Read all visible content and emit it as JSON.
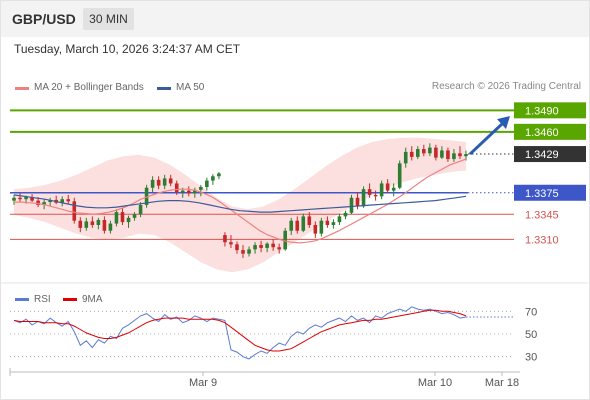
{
  "header": {
    "symbol": "GBP/USD",
    "timeframe": "30 MIN"
  },
  "timestamp": "Tuesday, March 10, 2026 3:24:37 AM CET",
  "legend": {
    "ma20": "MA 20 + Bollinger Bands",
    "ma50": "MA 50"
  },
  "copyright": "Research © 2026 Trading Central",
  "colors": {
    "up": "#2e7d32",
    "down": "#c62828",
    "ma20": "#f08080",
    "ma50": "#3b5b9a",
    "bands": "#fbd6d6",
    "target": "#5aa600",
    "support": "#3d56c8",
    "resistance": "#d9534f",
    "last": "#333333",
    "arrow": "#2a5cb0",
    "rsi": "#5b7bd5",
    "rsi_ma": "#e00000"
  },
  "chart_data": [
    {
      "type": "candlestick",
      "ylim": [
        1.327,
        1.351
      ],
      "levels": [
        {
          "kind": "target",
          "label": "1.3490",
          "value": 1.349
        },
        {
          "kind": "target",
          "label": "1.3460",
          "value": 1.346
        },
        {
          "kind": "last",
          "label": "1.3429",
          "value": 1.3429
        },
        {
          "kind": "pivot",
          "label": "1.3375",
          "value": 1.3375
        },
        {
          "kind": "resistance",
          "label": "1.3345",
          "value": 1.3345
        },
        {
          "kind": "resistance",
          "label": "1.3310",
          "value": 1.331
        }
      ],
      "x_labels": [
        "Mar 9",
        "Mar 10",
        "Mar 18"
      ],
      "candles": [
        [
          1.3364,
          1.3372,
          1.3358,
          1.3368
        ],
        [
          1.3368,
          1.3374,
          1.3362,
          1.3366
        ],
        [
          1.3366,
          1.3371,
          1.336,
          1.3369
        ],
        [
          1.3369,
          1.3373,
          1.3362,
          1.3364
        ],
        [
          1.3364,
          1.3369,
          1.3355,
          1.3358
        ],
        [
          1.3358,
          1.3366,
          1.3352,
          1.3362
        ],
        [
          1.3362,
          1.3368,
          1.3356,
          1.3365
        ],
        [
          1.3365,
          1.3371,
          1.3359,
          1.3361
        ],
        [
          1.3361,
          1.337,
          1.3356,
          1.3366
        ],
        [
          1.3366,
          1.3372,
          1.336,
          1.3363
        ],
        [
          1.3363,
          1.3368,
          1.3332,
          1.3336
        ],
        [
          1.3336,
          1.3341,
          1.332,
          1.3326
        ],
        [
          1.3326,
          1.334,
          1.3322,
          1.3335
        ],
        [
          1.3335,
          1.3342,
          1.3326,
          1.333
        ],
        [
          1.333,
          1.334,
          1.3324,
          1.3337
        ],
        [
          1.3337,
          1.3342,
          1.3318,
          1.3322
        ],
        [
          1.3322,
          1.3336,
          1.3318,
          1.3332
        ],
        [
          1.3332,
          1.3352,
          1.3328,
          1.3348
        ],
        [
          1.3348,
          1.3354,
          1.333,
          1.3334
        ],
        [
          1.3334,
          1.3343,
          1.3326,
          1.334
        ],
        [
          1.334,
          1.3348,
          1.3336,
          1.3345
        ],
        [
          1.3345,
          1.3362,
          1.3341,
          1.3358
        ],
        [
          1.3358,
          1.3386,
          1.3354,
          1.3382
        ],
        [
          1.3382,
          1.3398,
          1.3376,
          1.3393
        ],
        [
          1.3393,
          1.3398,
          1.338,
          1.3385
        ],
        [
          1.3385,
          1.34,
          1.338,
          1.3395
        ],
        [
          1.3395,
          1.34,
          1.3384,
          1.3388
        ],
        [
          1.3388,
          1.3392,
          1.3372,
          1.3376
        ],
        [
          1.3376,
          1.3382,
          1.3368,
          1.3378
        ],
        [
          1.3378,
          1.3384,
          1.337,
          1.3374
        ],
        [
          1.3374,
          1.3382,
          1.3368,
          1.3379
        ],
        [
          1.3379,
          1.3386,
          1.337,
          1.3383
        ],
        [
          1.3383,
          1.3396,
          1.3378,
          1.3392
        ],
        [
          1.3392,
          1.3401,
          1.3386,
          1.3398
        ],
        [
          1.3398,
          1.3404,
          1.3394,
          1.3402
        ],
        [
          1.3316,
          1.332,
          1.33,
          1.3306
        ],
        [
          1.3306,
          1.3316,
          1.3298,
          1.3303
        ],
        [
          1.3303,
          1.3307,
          1.329,
          1.3295
        ],
        [
          1.3295,
          1.3302,
          1.3284,
          1.329
        ],
        [
          1.329,
          1.33,
          1.3286,
          1.3296
        ],
        [
          1.3296,
          1.3306,
          1.329,
          1.3302
        ],
        [
          1.3302,
          1.3308,
          1.3292,
          1.3298
        ],
        [
          1.3298,
          1.3306,
          1.3292,
          1.3304
        ],
        [
          1.3304,
          1.331,
          1.3294,
          1.3299
        ],
        [
          1.3299,
          1.3304,
          1.329,
          1.3296
        ],
        [
          1.3296,
          1.3326,
          1.3294,
          1.3322
        ],
        [
          1.3322,
          1.334,
          1.3316,
          1.3336
        ],
        [
          1.3336,
          1.3342,
          1.3318,
          1.3322
        ],
        [
          1.3322,
          1.3346,
          1.332,
          1.3342
        ],
        [
          1.3342,
          1.3348,
          1.3326,
          1.333
        ],
        [
          1.333,
          1.3335,
          1.3312,
          1.3318
        ],
        [
          1.3318,
          1.334,
          1.3314,
          1.3336
        ],
        [
          1.3336,
          1.3342,
          1.3326,
          1.333
        ],
        [
          1.333,
          1.3338,
          1.3325,
          1.3334
        ],
        [
          1.3334,
          1.3346,
          1.333,
          1.3342
        ],
        [
          1.3342,
          1.335,
          1.3338,
          1.3347
        ],
        [
          1.3347,
          1.3372,
          1.3345,
          1.3368
        ],
        [
          1.3368,
          1.3376,
          1.3352,
          1.3356
        ],
        [
          1.3356,
          1.3384,
          1.3354,
          1.338
        ],
        [
          1.338,
          1.3388,
          1.3368,
          1.3372
        ],
        [
          1.3372,
          1.3378,
          1.3364,
          1.337
        ],
        [
          1.337,
          1.3392,
          1.3366,
          1.3388
        ],
        [
          1.3388,
          1.3394,
          1.3374,
          1.3378
        ],
        [
          1.3378,
          1.3388,
          1.337,
          1.3382
        ],
        [
          1.3382,
          1.342,
          1.338,
          1.3416
        ],
        [
          1.3416,
          1.3438,
          1.341,
          1.3432
        ],
        [
          1.3432,
          1.344,
          1.342,
          1.3425
        ],
        [
          1.3425,
          1.344,
          1.3422,
          1.3436
        ],
        [
          1.3436,
          1.3442,
          1.3426,
          1.343
        ],
        [
          1.343,
          1.3444,
          1.3426,
          1.3438
        ],
        [
          1.3438,
          1.3442,
          1.342,
          1.3424
        ],
        [
          1.3424,
          1.344,
          1.3422,
          1.3434
        ],
        [
          1.3434,
          1.3438,
          1.3418,
          1.3422
        ],
        [
          1.3422,
          1.3436,
          1.3418,
          1.343
        ],
        [
          1.343,
          1.344,
          1.3422,
          1.3426
        ],
        [
          1.3426,
          1.3434,
          1.342,
          1.3429
        ]
      ],
      "ma20": [
        1.3362,
        1.3362,
        1.3361,
        1.336,
        1.3358,
        1.3355,
        1.3352,
        1.3349,
        1.3347,
        1.3346,
        1.3345,
        1.3346,
        1.3348,
        1.3351,
        1.3355,
        1.336,
        1.3366,
        1.337,
        1.3374,
        1.3377,
        1.3379,
        1.338,
        1.338,
        1.3378,
        1.3374,
        1.3369,
        1.3362,
        1.3354,
        1.3346,
        1.3338,
        1.333,
        1.3322,
        1.3316,
        1.3312,
        1.3308,
        1.3306,
        1.3305,
        1.3306,
        1.3308,
        1.3312,
        1.3317,
        1.3322,
        1.3328,
        1.3334,
        1.334,
        1.3346,
        1.3352,
        1.3358,
        1.3365,
        1.3372,
        1.338,
        1.3388,
        1.3396,
        1.3402,
        1.3408,
        1.3414,
        1.3418,
        1.3422
      ],
      "ma50": [
        1.3372,
        1.337,
        1.3368,
        1.3366,
        1.3363,
        1.336,
        1.3357,
        1.3355,
        1.3354,
        1.3354,
        1.3355,
        1.3357,
        1.3359,
        1.3361,
        1.3363,
        1.3364,
        1.3364,
        1.3363,
        1.3361,
        1.3358,
        1.3355,
        1.3352,
        1.335,
        1.3349,
        1.3348,
        1.3348,
        1.3349,
        1.335,
        1.3351,
        1.3352,
        1.3353,
        1.3354,
        1.3355,
        1.3356,
        1.3357,
        1.3358,
        1.3359,
        1.336,
        1.3361,
        1.3362,
        1.3363,
        1.3364,
        1.3366,
        1.3368,
        1.337
      ],
      "bb_upper": [
        1.338,
        1.3382,
        1.3386,
        1.3392,
        1.34,
        1.341,
        1.342,
        1.3426,
        1.3428,
        1.3424,
        1.3414,
        1.34,
        1.3384,
        1.3368,
        1.3356,
        1.3352,
        1.3356,
        1.3366,
        1.338,
        1.3396,
        1.3412,
        1.3426,
        1.3438,
        1.3446,
        1.345,
        1.3452,
        1.3452,
        1.345,
        1.3448,
        1.3446
      ],
      "bb_lower": [
        1.3344,
        1.334,
        1.3334,
        1.3326,
        1.3318,
        1.3312,
        1.331,
        1.3312,
        1.3318,
        1.3316,
        1.3306,
        1.3292,
        1.3278,
        1.3268,
        1.3264,
        1.3268,
        1.3278,
        1.3292,
        1.3306,
        1.332,
        1.3334,
        1.3348,
        1.336,
        1.3372,
        1.3382,
        1.339,
        1.3396,
        1.34,
        1.3404,
        1.3406
      ]
    },
    {
      "type": "line",
      "series_labels": {
        "rsi": "RSI",
        "ma": "9MA"
      },
      "ylim": [
        20,
        80
      ],
      "y_ticks": [
        "70",
        "50",
        "30"
      ],
      "rsi": [
        62,
        60,
        63,
        58,
        61,
        59,
        64,
        60,
        57,
        61,
        52,
        40,
        44,
        38,
        45,
        42,
        48,
        46,
        55,
        58,
        62,
        66,
        68,
        64,
        61,
        67,
        63,
        65,
        60,
        62,
        66,
        64,
        61,
        64,
        63,
        62,
        36,
        34,
        30,
        28,
        32,
        35,
        33,
        38,
        42,
        40,
        48,
        52,
        50,
        55,
        58,
        56,
        60,
        62,
        64,
        61,
        66,
        62,
        64,
        60,
        66,
        64,
        68,
        70,
        72,
        70,
        74,
        72,
        71,
        72,
        70,
        68,
        69,
        67,
        64,
        65
      ],
      "rsi_ma": [
        62,
        61,
        61,
        61,
        61,
        60,
        60,
        60,
        59,
        59,
        57,
        54,
        51,
        49,
        47,
        46,
        46,
        47,
        49,
        51,
        54,
        57,
        60,
        62,
        63,
        64,
        64,
        64,
        64,
        63,
        63,
        63,
        63,
        63,
        62,
        60,
        56,
        52,
        48,
        44,
        40,
        38,
        36,
        35,
        35,
        36,
        37,
        40,
        43,
        46,
        49,
        52,
        54,
        56,
        58,
        59,
        60,
        61,
        62,
        62,
        63,
        63,
        64,
        65,
        66,
        67,
        68,
        69,
        70,
        71,
        71,
        70,
        70,
        69,
        68,
        66
      ]
    }
  ]
}
